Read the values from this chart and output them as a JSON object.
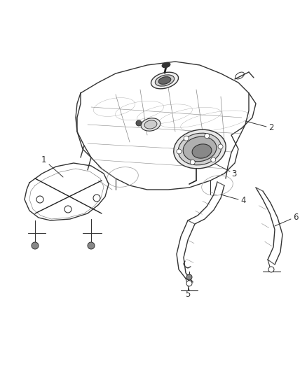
{
  "background_color": "#ffffff",
  "line_color": "#333333",
  "label_color": "#333333",
  "figsize": [
    4.38,
    5.33
  ],
  "dpi": 100,
  "label_fontsize": 8.5
}
